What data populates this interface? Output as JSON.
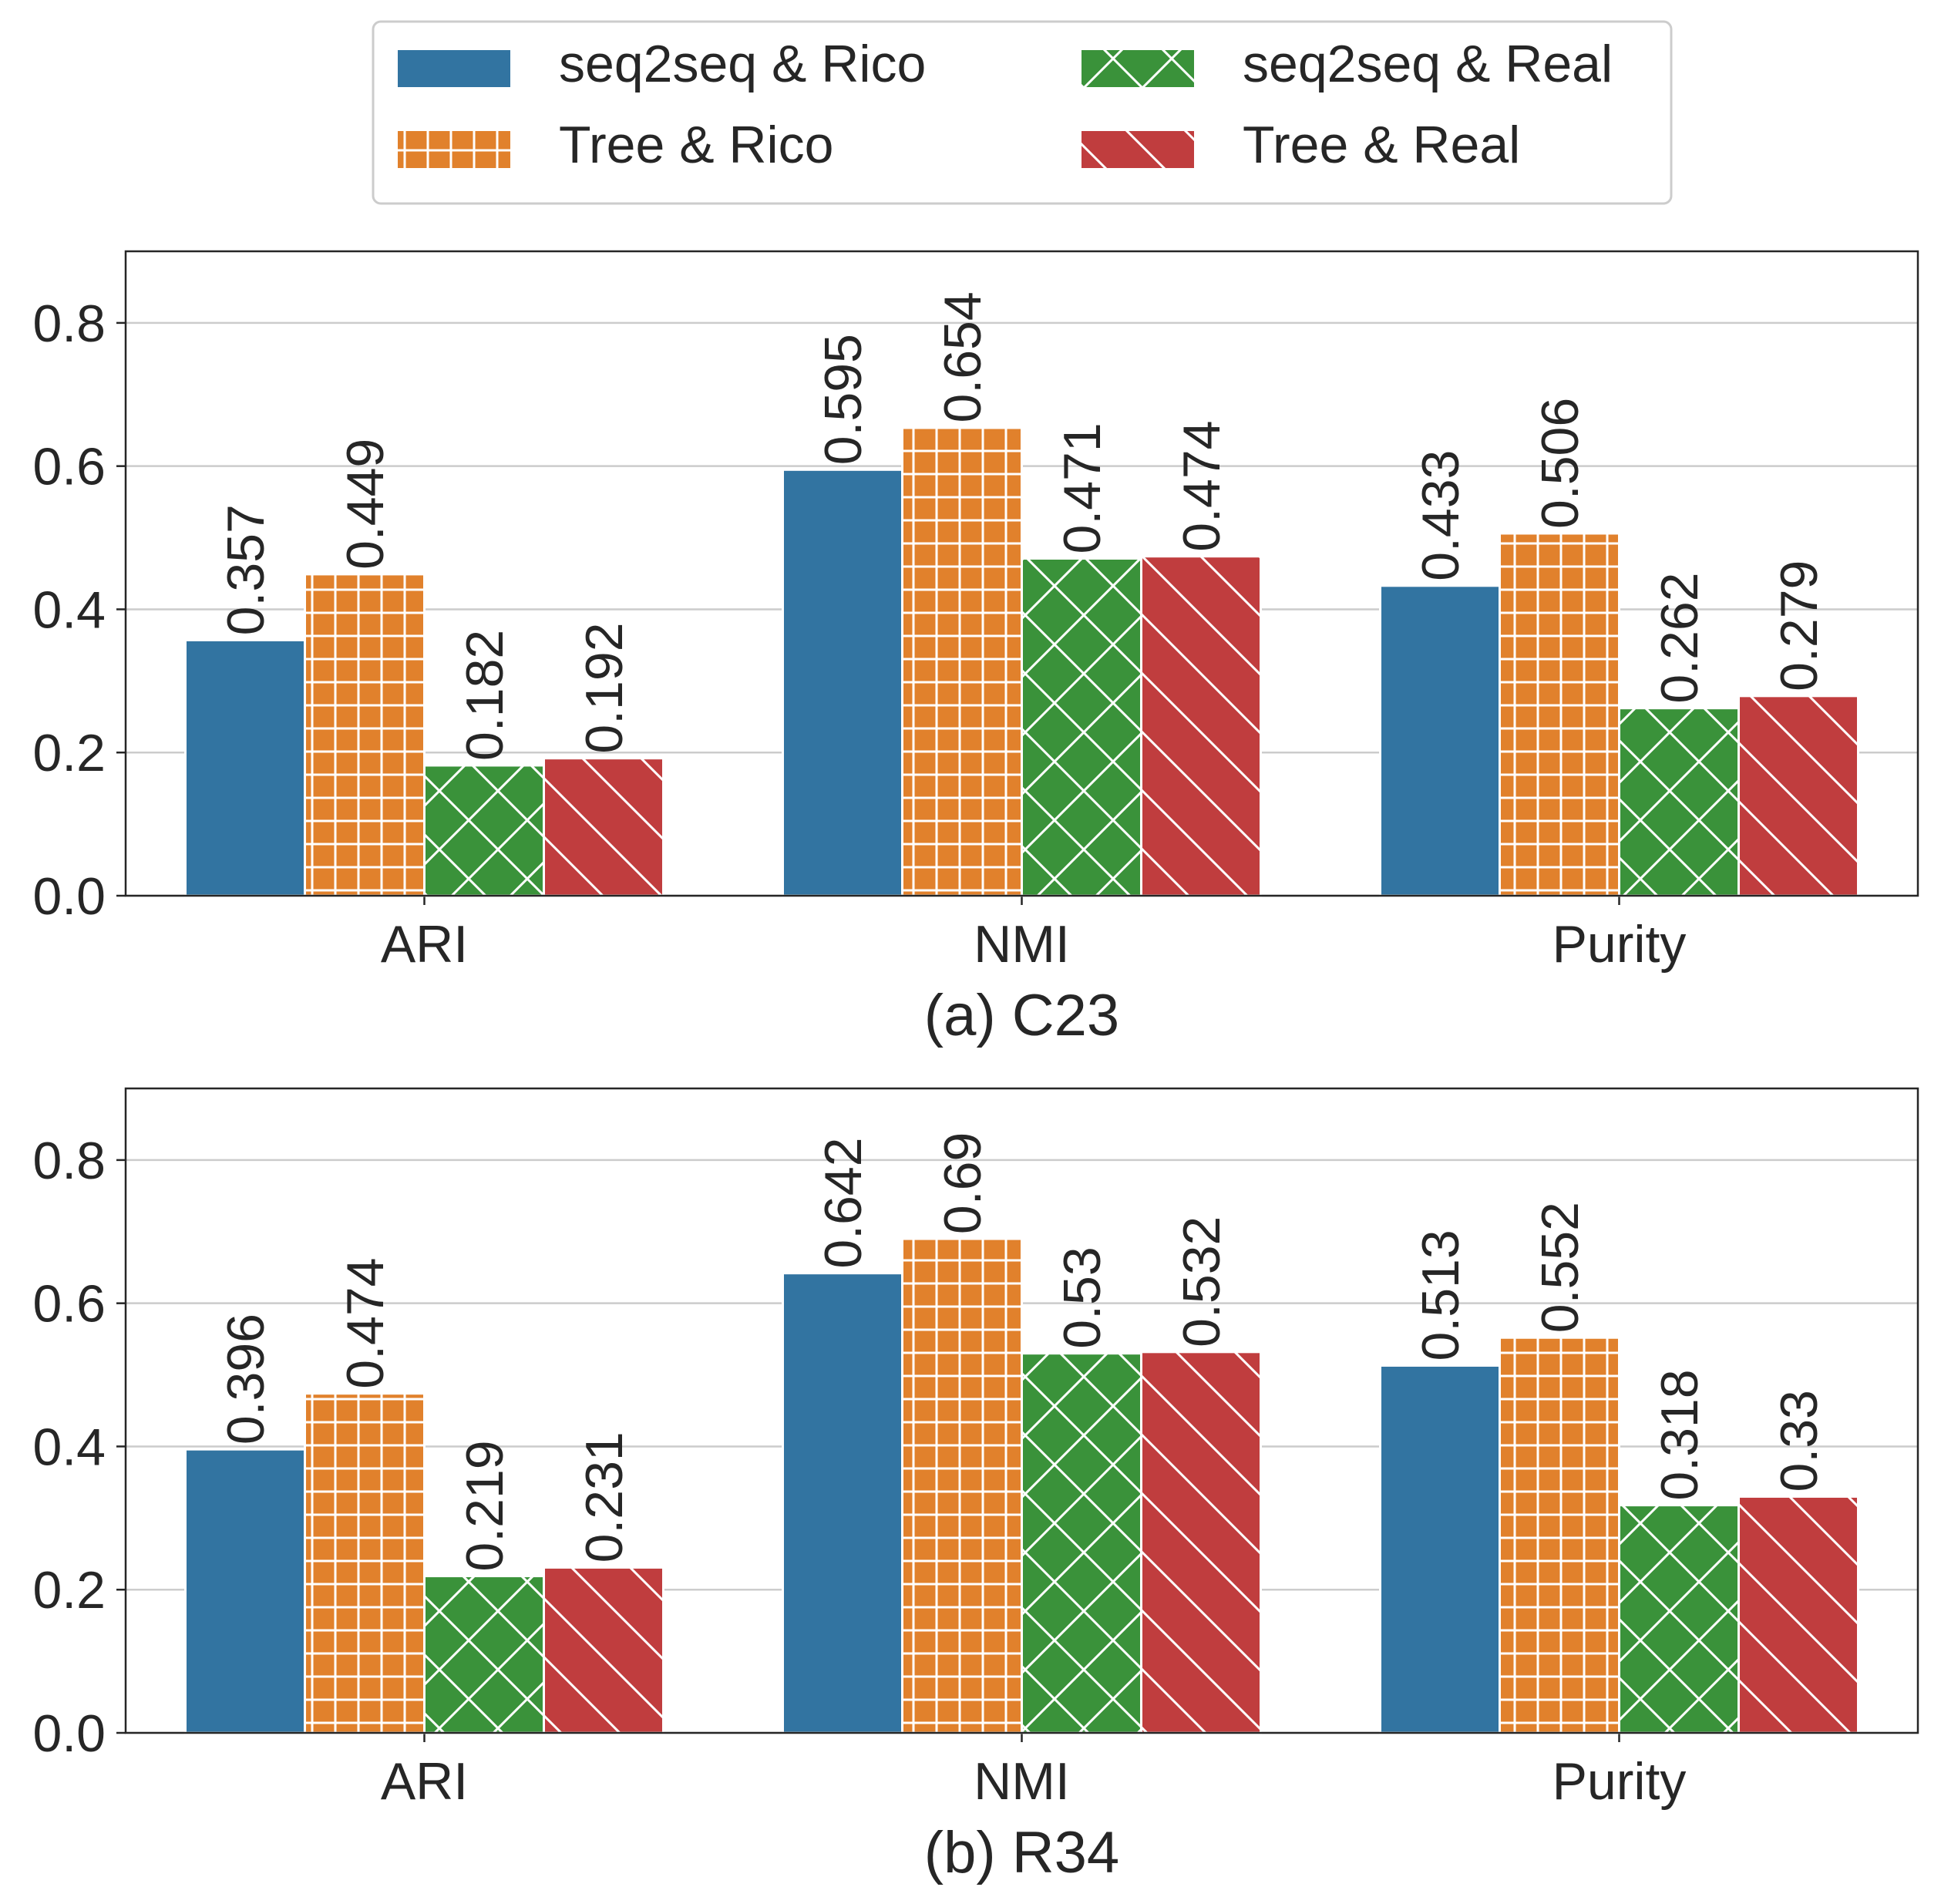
{
  "legend": {
    "items": [
      {
        "label": "seq2seq & Rico",
        "color": "#3274a1",
        "hatch": "none"
      },
      {
        "label": "Tree & Rico",
        "color": "#e1812c",
        "hatch": "grid"
      },
      {
        "label": "seq2seq & Real",
        "color": "#3a923a",
        "hatch": "cross"
      },
      {
        "label": "Tree & Real",
        "color": "#c03d3e",
        "hatch": "diagonal"
      }
    ]
  },
  "chart_data": [
    {
      "type": "bar",
      "title": "(a) C23",
      "categories": [
        "ARI",
        "NMI",
        "Purity"
      ],
      "ylim": [
        0,
        0.9
      ],
      "yticks": [
        "0.0",
        "0.2",
        "0.4",
        "0.6",
        "0.8"
      ],
      "grid": true,
      "series": [
        {
          "name": "seq2seq & Rico",
          "values": [
            0.357,
            0.595,
            0.433
          ],
          "labels": [
            "0.357",
            "0.595",
            "0.433"
          ]
        },
        {
          "name": "Tree & Rico",
          "values": [
            0.449,
            0.654,
            0.506
          ],
          "labels": [
            "0.449",
            "0.654",
            "0.506"
          ]
        },
        {
          "name": "seq2seq & Real",
          "values": [
            0.182,
            0.471,
            0.262
          ],
          "labels": [
            "0.182",
            "0.471",
            "0.262"
          ]
        },
        {
          "name": "Tree & Real",
          "values": [
            0.192,
            0.474,
            0.279
          ],
          "labels": [
            "0.192",
            "0.474",
            "0.279"
          ]
        }
      ]
    },
    {
      "type": "bar",
      "title": "(b) R34",
      "categories": [
        "ARI",
        "NMI",
        "Purity"
      ],
      "ylim": [
        0,
        0.9
      ],
      "yticks": [
        "0.0",
        "0.2",
        "0.4",
        "0.6",
        "0.8"
      ],
      "grid": true,
      "series": [
        {
          "name": "seq2seq & Rico",
          "values": [
            0.396,
            0.642,
            0.513
          ],
          "labels": [
            "0.396",
            "0.642",
            "0.513"
          ]
        },
        {
          "name": "Tree & Rico",
          "values": [
            0.474,
            0.69,
            0.552
          ],
          "labels": [
            "0.474",
            "0.69",
            "0.552"
          ]
        },
        {
          "name": "seq2seq & Real",
          "values": [
            0.219,
            0.53,
            0.318
          ],
          "labels": [
            "0.219",
            "0.53",
            "0.318"
          ]
        },
        {
          "name": "Tree & Real",
          "values": [
            0.231,
            0.532,
            0.33
          ],
          "labels": [
            "0.231",
            "0.532",
            "0.33"
          ]
        }
      ]
    }
  ]
}
